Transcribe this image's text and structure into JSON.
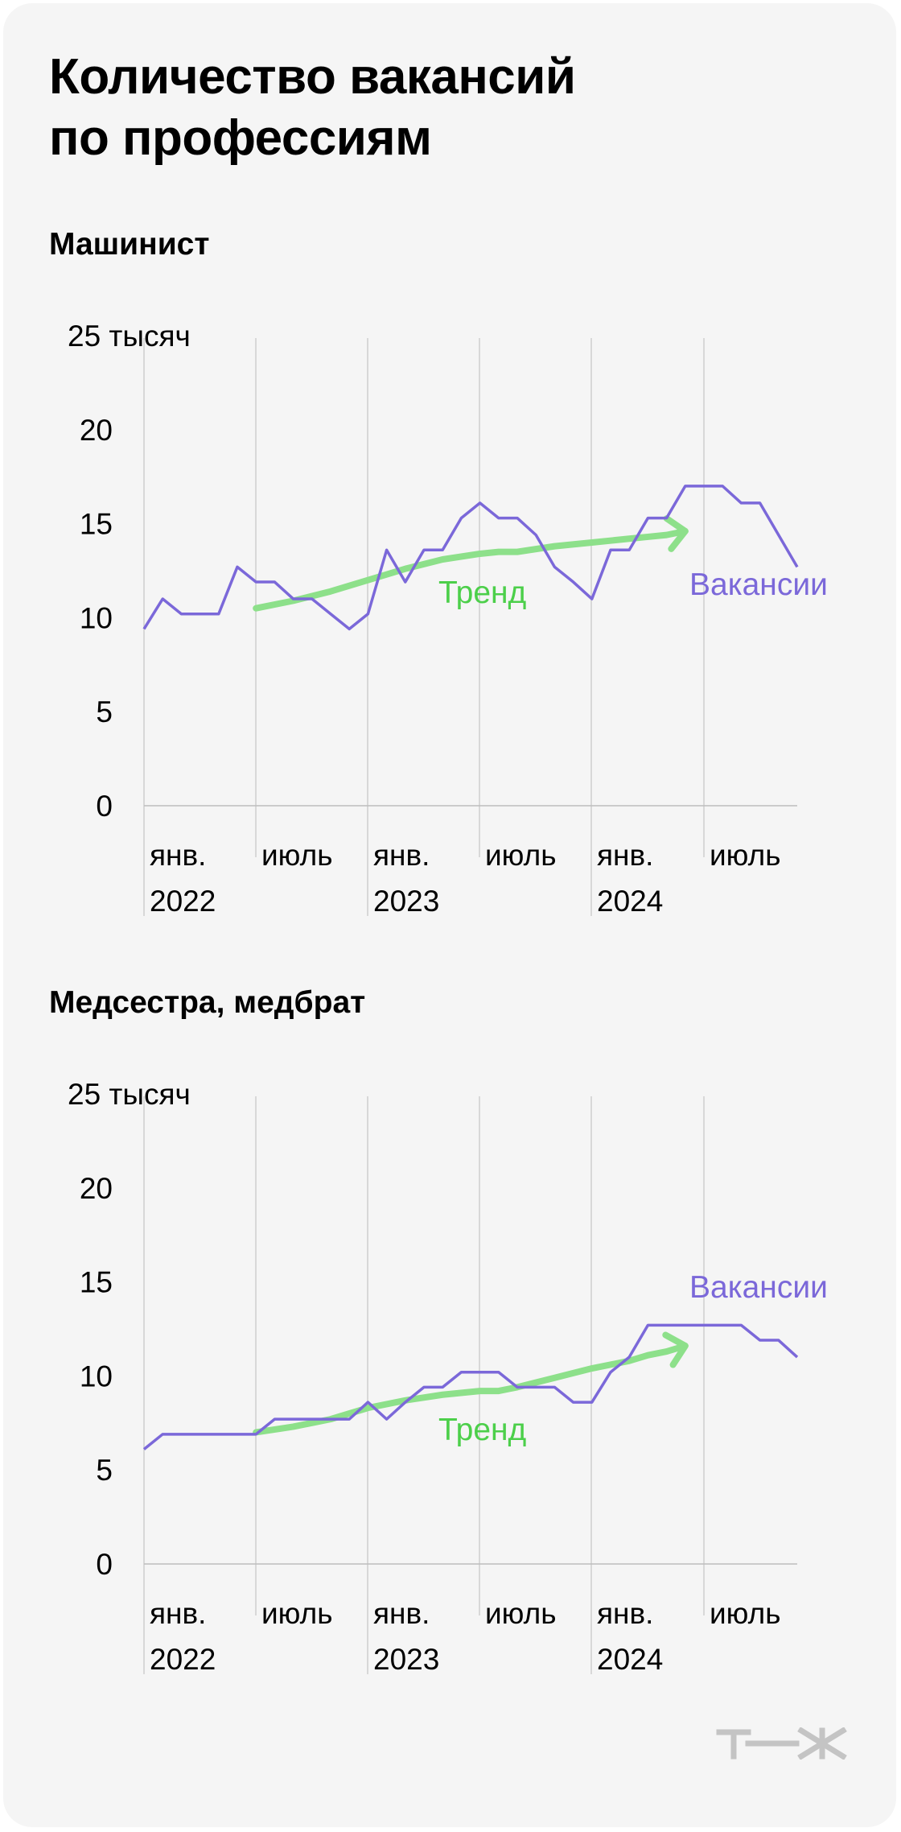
{
  "title_lines": [
    "Количество вакансий",
    "по профессиям"
  ],
  "colors": {
    "vacancies": "#7b68d9",
    "trend": "#8de08a",
    "trend_label": "#4ccf4a",
    "grid": "#cfcfcf"
  },
  "logo": "т—ж",
  "chart_data": [
    {
      "type": "line",
      "title": "Машинист",
      "y_unit_label": "25 тысяч",
      "yticks": [
        "0",
        "5",
        "10",
        "15",
        "20"
      ],
      "ylim": [
        0,
        25
      ],
      "xlim": [
        0,
        35
      ],
      "x_month_labels": [
        "янв.",
        "июль",
        "янв.",
        "июль",
        "янв.",
        "июль"
      ],
      "x_year_labels": [
        "2022",
        "2023",
        "2024"
      ],
      "series": [
        {
          "name": "Вакансии",
          "x": [
            0,
            1,
            2,
            3,
            4,
            5,
            6,
            7,
            8,
            9,
            10,
            11,
            12,
            13,
            14,
            15,
            16,
            17,
            18,
            19,
            20,
            21,
            22,
            23,
            24,
            25,
            26,
            27,
            28,
            29,
            30,
            31,
            32,
            33,
            34,
            35
          ],
          "values": [
            9.4,
            11.0,
            10.2,
            10.2,
            10.2,
            12.7,
            11.9,
            11.9,
            11.0,
            11.0,
            10.2,
            9.4,
            10.2,
            13.6,
            11.9,
            13.6,
            13.6,
            15.3,
            16.1,
            15.3,
            15.3,
            14.4,
            12.7,
            11.9,
            11.0,
            13.6,
            13.6,
            15.3,
            15.3,
            17.0,
            17.0,
            17.0,
            16.1,
            16.1,
            14.4,
            12.7
          ]
        },
        {
          "name": "Тренд",
          "x": [
            6,
            8,
            10,
            12,
            14,
            16,
            18,
            19,
            20,
            22,
            24,
            26,
            27,
            28,
            29
          ],
          "values": [
            10.5,
            10.9,
            11.4,
            12.0,
            12.6,
            13.1,
            13.4,
            13.5,
            13.5,
            13.8,
            14.0,
            14.2,
            14.3,
            14.4,
            14.6
          ]
        }
      ]
    },
    {
      "type": "line",
      "title": "Медсестра, медбрат",
      "y_unit_label": "25 тысяч",
      "yticks": [
        "0",
        "5",
        "10",
        "15",
        "20"
      ],
      "ylim": [
        0,
        25
      ],
      "xlim": [
        0,
        35
      ],
      "x_month_labels": [
        "янв.",
        "июль",
        "янв.",
        "июль",
        "янв.",
        "июль"
      ],
      "x_year_labels": [
        "2022",
        "2023",
        "2024"
      ],
      "series": [
        {
          "name": "Вакансии",
          "x": [
            0,
            1,
            2,
            3,
            4,
            5,
            6,
            7,
            8,
            9,
            10,
            11,
            12,
            13,
            14,
            15,
            16,
            17,
            18,
            19,
            20,
            21,
            22,
            23,
            24,
            25,
            26,
            27,
            28,
            29,
            30,
            31,
            32,
            33,
            34,
            35
          ],
          "values": [
            6.1,
            6.9,
            6.9,
            6.9,
            6.9,
            6.9,
            6.9,
            7.7,
            7.7,
            7.7,
            7.7,
            7.7,
            8.6,
            7.7,
            8.6,
            9.4,
            9.4,
            10.2,
            10.2,
            10.2,
            9.4,
            9.4,
            9.4,
            8.6,
            8.6,
            10.2,
            11.0,
            12.7,
            12.7,
            12.7,
            12.7,
            12.7,
            12.7,
            11.9,
            11.9,
            11.0
          ]
        },
        {
          "name": "Тренд",
          "x": [
            6,
            8,
            10,
            12,
            14,
            16,
            18,
            19,
            20,
            22,
            24,
            26,
            27,
            28,
            29
          ],
          "values": [
            7.0,
            7.3,
            7.7,
            8.3,
            8.7,
            9.0,
            9.2,
            9.2,
            9.4,
            9.9,
            10.4,
            10.8,
            11.1,
            11.3,
            11.6
          ]
        }
      ]
    }
  ]
}
